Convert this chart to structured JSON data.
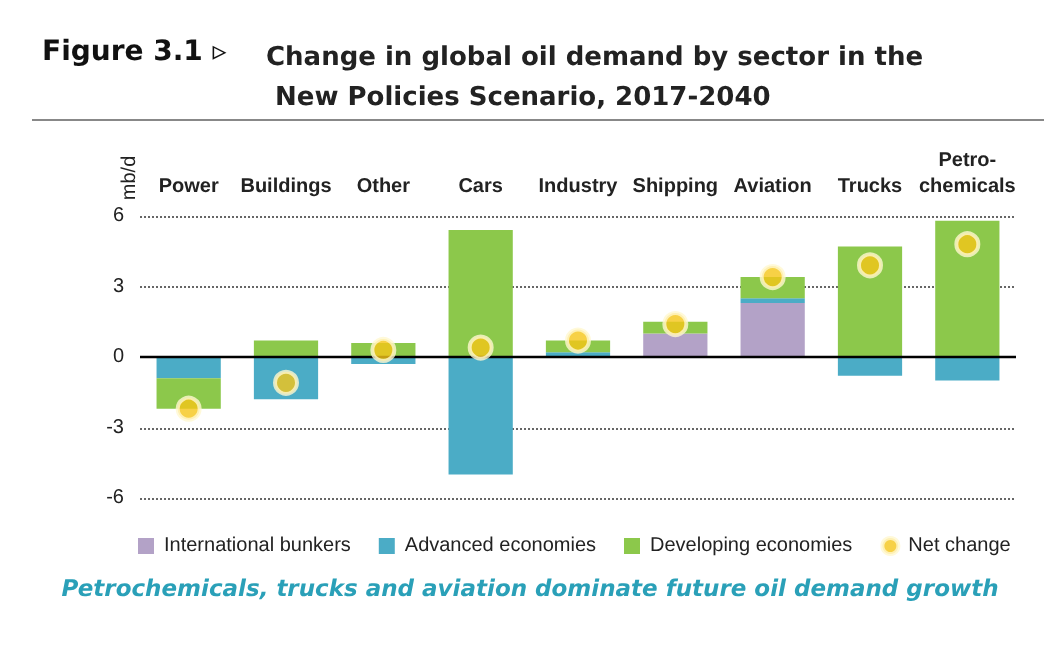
{
  "chart_data": {
    "type": "bar",
    "title": "Change in global oil demand by sector in the New Policies Scenario, 2017-2040",
    "ylabel": "mb/d",
    "annotations": [
      "Figure 3.1 ▹",
      "Petrochemicals, trucks and aviation dominate future oil demand growth"
    ],
    "categories": [
      "Power",
      "Buildings",
      "Other",
      "Cars",
      "Industry",
      "Shipping",
      "Aviation",
      "Trucks",
      "Petro-\nchemicals"
    ],
    "stacked": true,
    "series": [
      {
        "name": "International bunkers",
        "color": "#b3a2c7",
        "values": [
          null,
          null,
          null,
          null,
          null,
          1.0,
          2.3,
          null,
          null
        ]
      },
      {
        "name": "Advanced economies",
        "color": "#4bacc6",
        "values": [
          -0.9,
          -1.8,
          -0.3,
          -5.0,
          0.2,
          null,
          0.2,
          -0.8,
          -1.0
        ]
      },
      {
        "name": "Developing economies",
        "color": "#8cc84b",
        "values": [
          -1.3,
          0.7,
          0.6,
          5.4,
          0.5,
          0.5,
          0.9,
          4.7,
          5.8
        ]
      },
      {
        "name": "Net change",
        "type": "scatter",
        "color": "#f5c518",
        "x": [
          "Power",
          "Buildings",
          "Other",
          "Cars",
          "Industry",
          "Shipping",
          "Aviation",
          "Trucks",
          "Petro-\nchemicals"
        ],
        "values": [
          -2.2,
          -1.1,
          0.3,
          0.4,
          0.7,
          1.4,
          3.4,
          3.9,
          4.8
        ]
      }
    ],
    "ylim": [
      -6,
      6
    ],
    "yticks": [
      -6,
      -3,
      0,
      3,
      6
    ],
    "grid": "y",
    "legend": "bottom",
    "marker": "circle"
  }
}
